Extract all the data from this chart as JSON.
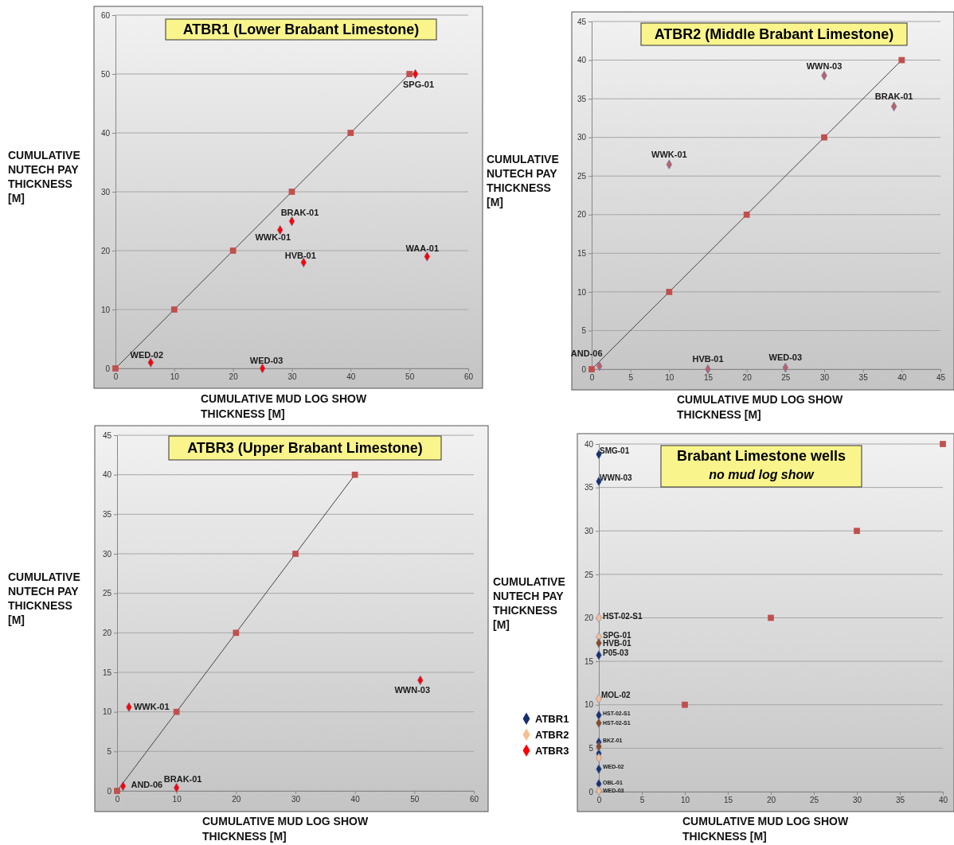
{
  "chart_data": [
    {
      "type": "scatter",
      "title": "ATBR1 (Lower Brabant Limestone)",
      "xlabel": "CUMULATIVE MUD LOG SHOW THICKNESS [M]",
      "ylabel": "CUMULATIVE NUTECH PAY THICKNESS [M]",
      "xlim": [
        0,
        60
      ],
      "xticks": [
        0,
        10,
        20,
        30,
        40,
        50,
        60
      ],
      "ylim": [
        0,
        60
      ],
      "yticks": [
        0,
        10,
        20,
        30,
        40,
        50,
        60
      ],
      "grid": "y",
      "series": [
        {
          "type": "line",
          "color": "#c0504d",
          "marker": "square",
          "x": [
            0,
            10,
            20,
            30,
            40,
            50
          ],
          "values": [
            0,
            10,
            20,
            30,
            40,
            50
          ]
        },
        {
          "color": "#ff0000",
          "marker": "diamond",
          "x": [
            51,
            30,
            28,
            32,
            53,
            6,
            25
          ],
          "values": [
            50,
            25,
            23.5,
            18,
            19,
            1,
            0
          ]
        }
      ],
      "annotations": [
        {
          "text": "SPG-01",
          "x": 51,
          "y": 50
        },
        {
          "text": "BRAK-01",
          "x": 30,
          "y": 25
        },
        {
          "text": "WWK-01",
          "x": 28,
          "y": 23.5
        },
        {
          "text": "HVB-01",
          "x": 32,
          "y": 18
        },
        {
          "text": "WAA-01",
          "x": 53,
          "y": 19
        },
        {
          "text": "WED-02",
          "x": 6,
          "y": 1
        },
        {
          "text": "WED-03",
          "x": 25,
          "y": 0
        }
      ]
    },
    {
      "type": "scatter",
      "title": "ATBR2 (Middle Brabant Limestone)",
      "xlabel": "CUMULATIVE MUD LOG SHOW THICKNESS [M]",
      "ylabel": "CUMULATIVE NUTECH PAY THICKNESS [M]",
      "xlim": [
        0,
        45
      ],
      "xticks": [
        0,
        5,
        10,
        15,
        20,
        25,
        30,
        35,
        40,
        45
      ],
      "ylim": [
        0,
        45
      ],
      "yticks": [
        0,
        5,
        10,
        15,
        20,
        25,
        30,
        35,
        40,
        45
      ],
      "grid": "y",
      "series": [
        {
          "type": "line",
          "color": "#c0504d",
          "marker": "square",
          "x": [
            0,
            10,
            20,
            30,
            40
          ],
          "values": [
            0,
            10,
            20,
            30,
            40
          ]
        },
        {
          "color": "#b8606e",
          "marker": "diamond",
          "x": [
            30,
            39,
            10,
            1,
            15,
            25
          ],
          "values": [
            38,
            34,
            26.5,
            0.4,
            0,
            0.2
          ]
        }
      ],
      "annotations": [
        {
          "text": "WWN-03",
          "x": 30,
          "y": 38
        },
        {
          "text": "BRAK-01",
          "x": 39,
          "y": 34
        },
        {
          "text": "WWK-01",
          "x": 10,
          "y": 26.5
        },
        {
          "text": "AND-06",
          "x": 1,
          "y": 0.4
        },
        {
          "text": "HVB-01",
          "x": 15,
          "y": 0
        },
        {
          "text": "WED-03",
          "x": 25,
          "y": 0.2
        }
      ]
    },
    {
      "type": "scatter",
      "title": "ATBR3 (Upper Brabant Limestone)",
      "xlabel": "CUMULATIVE MUD LOG SHOW THICKNESS [M]",
      "ylabel": "CUMULATIVE NUTECH PAY THICKNESS [M]",
      "xlim": [
        0,
        60
      ],
      "xticks": [
        0,
        10,
        20,
        30,
        40,
        50,
        60
      ],
      "ylim": [
        0,
        45
      ],
      "yticks": [
        0,
        5,
        10,
        15,
        20,
        25,
        30,
        35,
        40,
        45
      ],
      "grid": "y",
      "series": [
        {
          "type": "line",
          "color": "#c0504d",
          "marker": "square",
          "x": [
            0,
            10,
            20,
            30,
            40
          ],
          "values": [
            0,
            10,
            20,
            30,
            40
          ]
        },
        {
          "color": "#ff0000",
          "marker": "diamond",
          "x": [
            2,
            51,
            1,
            10
          ],
          "values": [
            10.6,
            14,
            0.6,
            0.4
          ]
        }
      ],
      "annotations": [
        {
          "text": "WWK-01",
          "x": 2,
          "y": 10.6
        },
        {
          "text": "WWN-03",
          "x": 51,
          "y": 14
        },
        {
          "text": "AND-06",
          "x": 1,
          "y": 0.6
        },
        {
          "text": "BRAK-01",
          "x": 10,
          "y": 0.4
        }
      ]
    },
    {
      "type": "scatter",
      "title": "Brabant Limestone wells",
      "subtitle": "no mud log show",
      "xlabel": "CUMULATIVE MUD LOG SHOW THICKNESS [M]",
      "ylabel": "CUMULATIVE NUTECH PAY THICKNESS [M]",
      "xlim": [
        0,
        40
      ],
      "xticks": [
        0,
        5,
        10,
        15,
        20,
        25,
        30,
        35,
        40
      ],
      "ylim": [
        0,
        40
      ],
      "yticks": [
        0,
        5,
        10,
        15,
        20,
        25,
        30,
        35,
        40
      ],
      "grid": "y",
      "legend": "left",
      "series": [
        {
          "color": "#c0504d",
          "marker": "square",
          "x": [
            10,
            20,
            30,
            40
          ],
          "values": [
            10,
            20,
            30,
            40
          ]
        },
        {
          "name": "ATBR1",
          "color": "#17306b",
          "marker": "diamond",
          "x": [
            0,
            0,
            0,
            0,
            0,
            0,
            0,
            0
          ],
          "values": [
            38.8,
            35.7,
            15.7,
            8.8,
            5.7,
            4.4,
            2.6,
            0.9
          ]
        },
        {
          "name": "ATBR2",
          "color": "#f9be8f",
          "marker": "diamond",
          "x": [
            0,
            0,
            0,
            0,
            0
          ],
          "values": [
            20,
            17.8,
            10.7,
            3.9,
            0.1
          ]
        },
        {
          "name": "ATBR3",
          "color": "#ff0000",
          "marker": "diamond"
        },
        {
          "color": "#8b4a1c",
          "marker": "diamond",
          "x": [
            0,
            0,
            0
          ],
          "values": [
            17.1,
            7.9,
            5.2
          ]
        }
      ],
      "annotations": [
        {
          "text": "SMG-01",
          "x": 0,
          "y": 38.8
        },
        {
          "text": "WWN-03",
          "x": 0,
          "y": 35.7
        },
        {
          "text": "HST-02-S1",
          "x": 0,
          "y": 20
        },
        {
          "text": "SPG-01",
          "x": 0,
          "y": 17.8
        },
        {
          "text": "HVB-01",
          "x": 0,
          "y": 17.1
        },
        {
          "text": "P05-03",
          "x": 0,
          "y": 15.7
        },
        {
          "text": "MOL-02",
          "x": 0,
          "y": 10.7
        },
        {
          "text": "HST-02-S1",
          "x": 0,
          "y": 8.8
        },
        {
          "text": "HST-02-S1",
          "x": 0,
          "y": 7.9
        },
        {
          "text": "BKZ-01",
          "x": 0,
          "y": 5.7
        },
        {
          "text": "WED-02",
          "x": 0,
          "y": 2.6
        },
        {
          "text": "OBL-01",
          "x": 0,
          "y": 0.9
        },
        {
          "text": "WED-03",
          "x": 0,
          "y": 0.1
        }
      ]
    }
  ]
}
